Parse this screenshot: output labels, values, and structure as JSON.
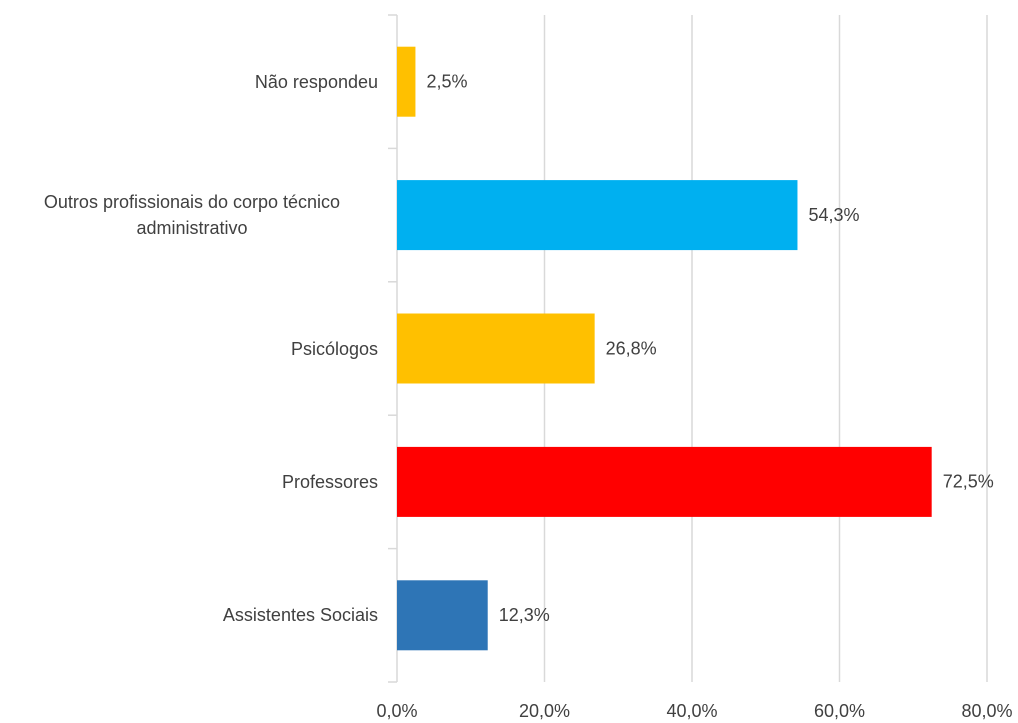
{
  "chart_data": {
    "type": "hbar",
    "categories": [
      "Não respondeu",
      "Outros profissionais do corpo técnico administrativo",
      "Psicólogos",
      "Professores",
      "Assistentes Sociais"
    ],
    "values": [
      2.5,
      54.3,
      26.8,
      72.5,
      12.3
    ],
    "value_labels": [
      "2,5%",
      "54,3%",
      "26,8%",
      "72,5%",
      "12,3%"
    ],
    "colors": [
      "#ffc000",
      "#00b0f0",
      "#ffc000",
      "#ff0000",
      "#2e75b6"
    ],
    "xlim": [
      0,
      80
    ],
    "xticks": [
      {
        "value": 0,
        "label": "0,0%"
      },
      {
        "value": 20,
        "label": "20,0%"
      },
      {
        "value": 40,
        "label": "40,0%"
      },
      {
        "value": 60,
        "label": "60,0%"
      },
      {
        "value": 80,
        "label": "80,0%"
      }
    ],
    "grid": true
  }
}
